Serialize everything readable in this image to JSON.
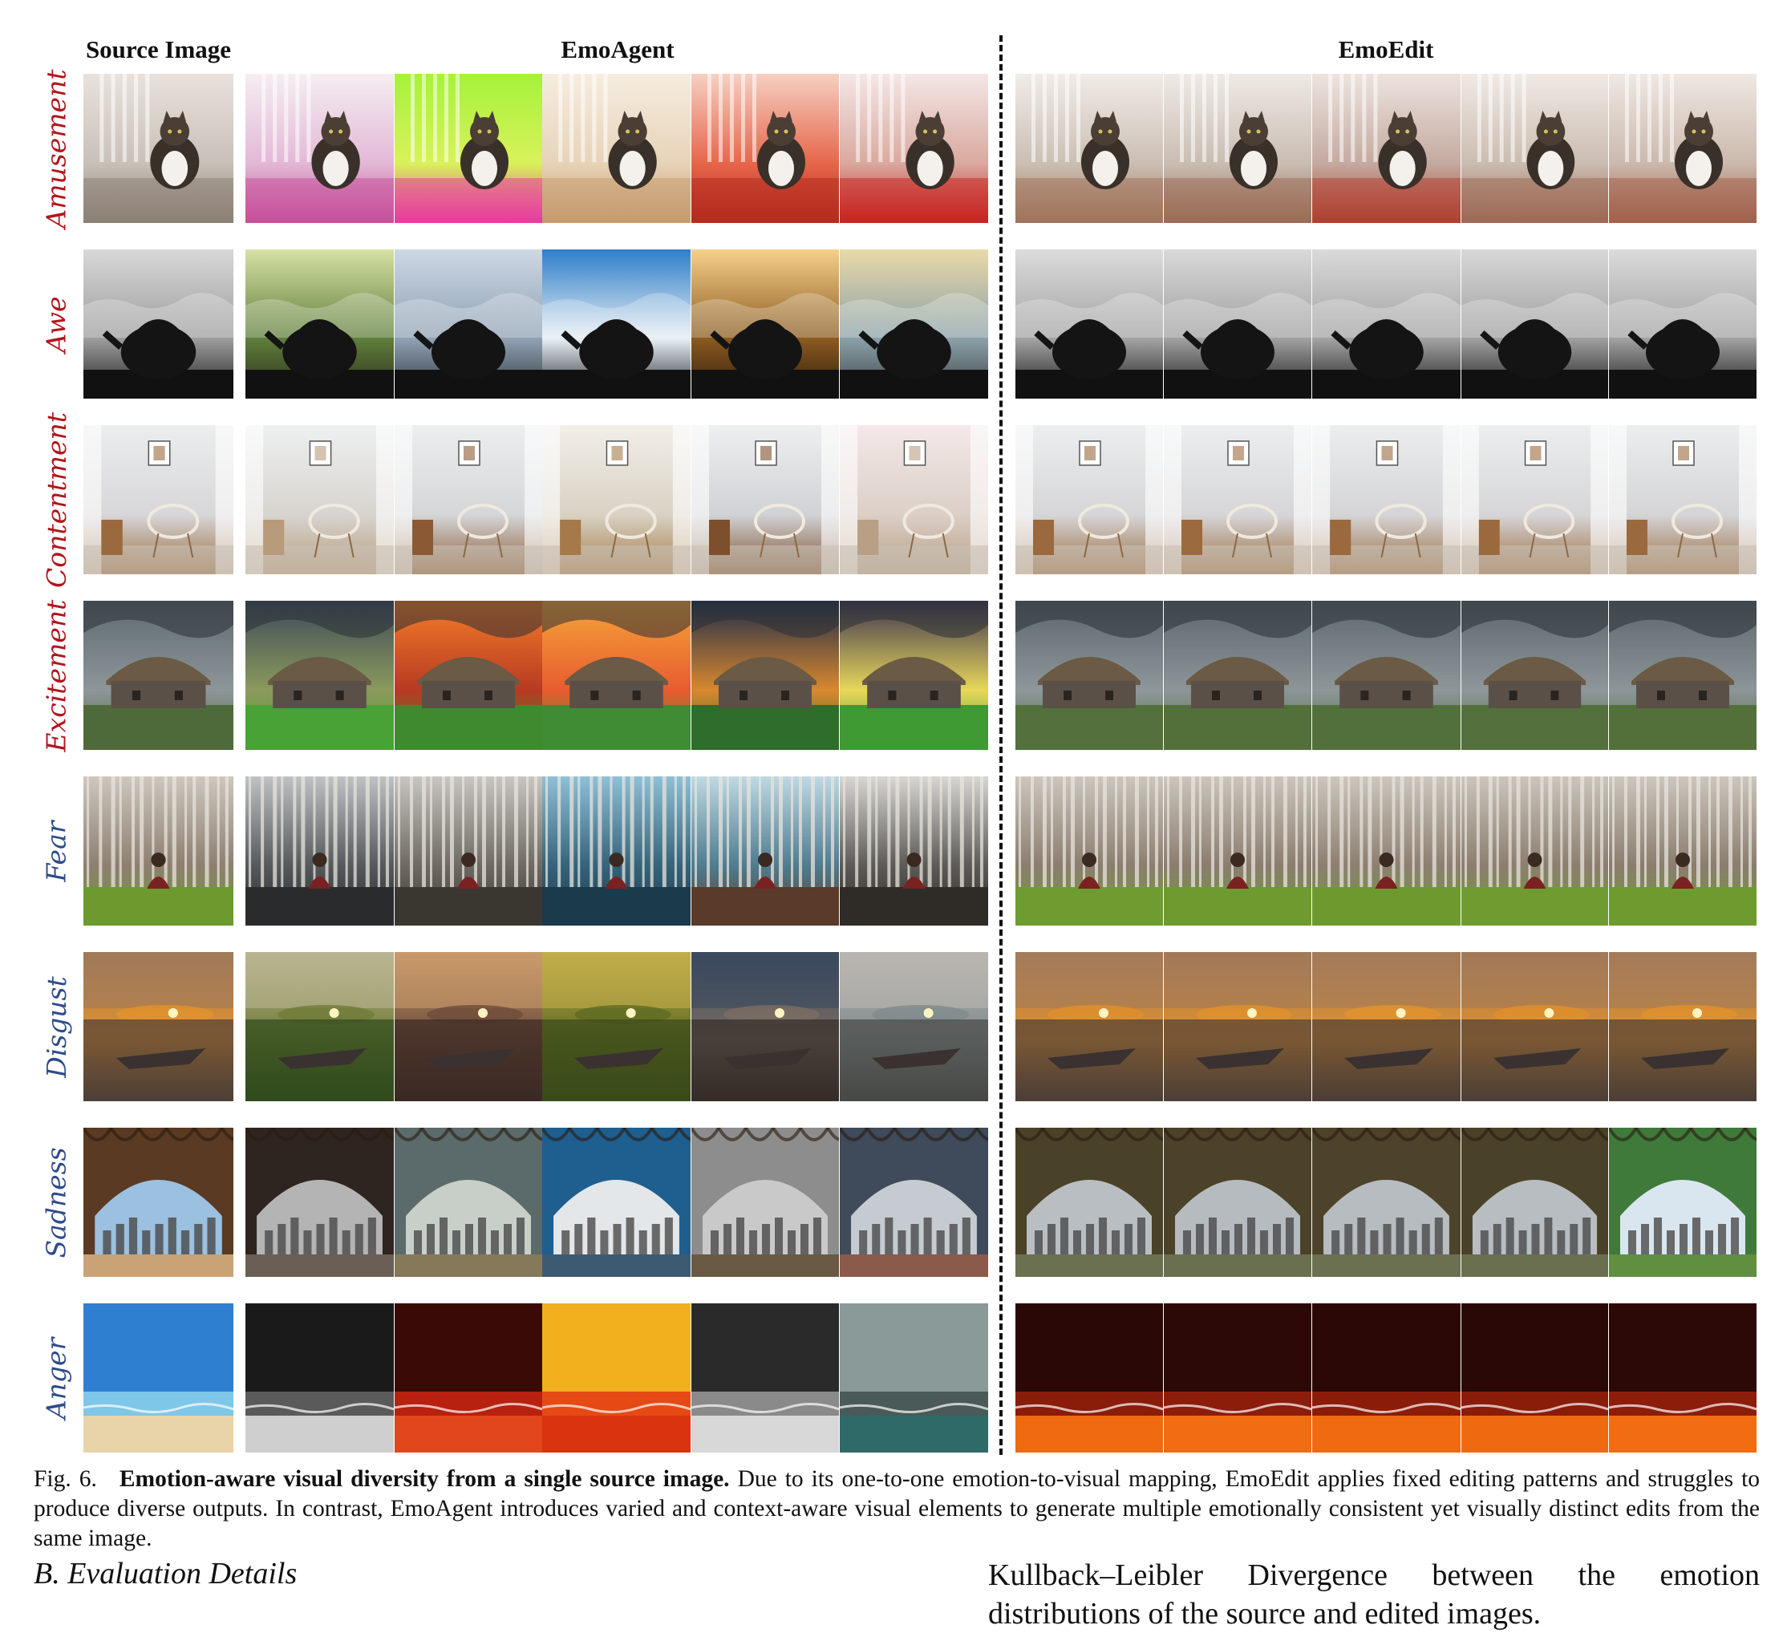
{
  "headers": {
    "source": "Source Image",
    "agent": "EmoAgent",
    "edit": "EmoEdit"
  },
  "rows": [
    {
      "emotion": "Amusement",
      "tone": "warm",
      "scene": "cat"
    },
    {
      "emotion": "Awe",
      "tone": "warm",
      "scene": "teapot"
    },
    {
      "emotion": "Contentment",
      "tone": "warm",
      "scene": "room"
    },
    {
      "emotion": "Excitement",
      "tone": "warm",
      "scene": "house"
    },
    {
      "emotion": "Fear",
      "tone": "cool",
      "scene": "forest"
    },
    {
      "emotion": "Disgust",
      "tone": "cool",
      "scene": "boat"
    },
    {
      "emotion": "Sadness",
      "tone": "cool",
      "scene": "arch"
    },
    {
      "emotion": "Anger",
      "tone": "cool",
      "scene": "sea"
    }
  ],
  "caption": {
    "figure_number": "Fig. 6.",
    "bold_title": "Emotion-aware visual diversity from a single source image.",
    "body": "Due to its one-to-one emotion-to-visual mapping, EmoEdit applies fixed editing patterns and struggles to produce diverse outputs. In contrast, EmoAgent introduces varied and context-aware visual elements to generate multiple emotionally consistent yet visually distinct edits from the same image."
  },
  "section": {
    "title": "B.  Evaluation Details"
  },
  "right_column_text": "Kullback–Leibler Divergence between the emotion distributions of the source and edited images."
}
